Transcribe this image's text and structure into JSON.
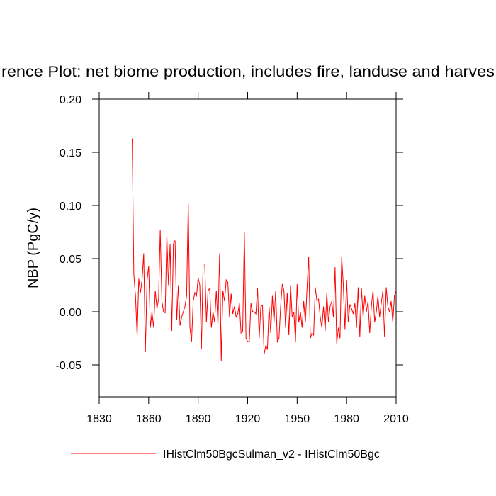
{
  "chart_data": {
    "type": "line",
    "title": "rence Plot: net biome production, includes fire, landuse and harves",
    "y_label": "NBP  (PgC/y)",
    "x": [
      1850,
      1851,
      1852,
      1853,
      1854,
      1855,
      1856,
      1857,
      1858,
      1859,
      1860,
      1861,
      1862,
      1863,
      1864,
      1865,
      1866,
      1867,
      1868,
      1869,
      1870,
      1871,
      1872,
      1873,
      1874,
      1875,
      1876,
      1877,
      1878,
      1879,
      1880,
      1881,
      1882,
      1883,
      1884,
      1885,
      1886,
      1887,
      1888,
      1889,
      1890,
      1891,
      1892,
      1893,
      1894,
      1895,
      1896,
      1897,
      1898,
      1899,
      1900,
      1901,
      1902,
      1903,
      1904,
      1905,
      1906,
      1907,
      1908,
      1909,
      1910,
      1911,
      1912,
      1913,
      1914,
      1915,
      1916,
      1917,
      1918,
      1919,
      1920,
      1921,
      1922,
      1923,
      1924,
      1925,
      1926,
      1927,
      1928,
      1929,
      1930,
      1931,
      1932,
      1933,
      1934,
      1935,
      1936,
      1937,
      1938,
      1939,
      1940,
      1941,
      1942,
      1943,
      1944,
      1945,
      1946,
      1947,
      1948,
      1949,
      1950,
      1951,
      1952,
      1953,
      1954,
      1955,
      1956,
      1957,
      1958,
      1959,
      1960,
      1961,
      1962,
      1963,
      1964,
      1965,
      1966,
      1967,
      1968,
      1969,
      1970,
      1971,
      1972,
      1973,
      1974,
      1975,
      1976,
      1977,
      1978,
      1979,
      1980,
      1981,
      1982,
      1983,
      1984,
      1985,
      1986,
      1987,
      1988,
      1989,
      1990,
      1991,
      1992,
      1993,
      1994,
      1995,
      1996,
      1997,
      1998,
      1999,
      2000,
      2001,
      2002,
      2003,
      2004,
      2005,
      2006,
      2007,
      2008,
      2009,
      2010
    ],
    "series": [
      {
        "name": "IHistClm50BgcSulman_v2 - IHistClm50Bgc",
        "color": "#ff0000",
        "values": [
          0.163,
          0.035,
          0.015,
          -0.023,
          0.031,
          0.018,
          0.03,
          0.055,
          -0.038,
          0.03,
          0.043,
          -0.015,
          0.0,
          -0.015,
          0.02,
          0.003,
          0.012,
          0.077,
          0.01,
          0.0,
          -0.001,
          0.072,
          0.025,
          0.064,
          -0.018,
          0.064,
          0.067,
          -0.008,
          0.025,
          -0.013,
          -0.005,
          0.0,
          0.005,
          0.015,
          0.102,
          -0.015,
          -0.028,
          0.01,
          0.018,
          0.015,
          0.032,
          0.025,
          -0.035,
          0.045,
          0.045,
          -0.01,
          0.02,
          0.022,
          -0.015,
          0.0,
          -0.01,
          0.02,
          -0.012,
          0.055,
          -0.046,
          0.02,
          0.01,
          0.03,
          0.028,
          -0.005,
          0.017,
          -0.002,
          0.005,
          -0.005,
          -0.002,
          0.008,
          -0.02,
          -0.018,
          0.075,
          -0.025,
          -0.028,
          -0.028,
          0.008,
          0.0,
          0.0,
          -0.002,
          0.022,
          -0.025,
          0.005,
          0.006,
          -0.04,
          -0.032,
          -0.035,
          0.005,
          -0.02,
          0.015,
          -0.01,
          0.02,
          -0.028,
          -0.025,
          0.005,
          0.026,
          0.02,
          -0.015,
          0.018,
          -0.022,
          0.025,
          -0.005,
          0.0,
          -0.028,
          0.026,
          -0.01,
          0.0,
          -0.015,
          0.01,
          -0.01,
          0.022,
          0.052,
          -0.025,
          -0.02,
          -0.022,
          0.023,
          0.01,
          0.012,
          -0.005,
          -0.015,
          0.005,
          -0.018,
          0.018,
          -0.01,
          0.005,
          0.01,
          -0.005,
          0.042,
          -0.03,
          -0.015,
          -0.025,
          0.052,
          0.025,
          -0.017,
          0.03,
          -0.01,
          0.007,
          0.003,
          -0.002,
          0.008,
          -0.015,
          0.023,
          -0.024,
          0.022,
          -0.005,
          0.015,
          0.0,
          0.01,
          -0.02,
          0.005,
          0.02,
          -0.01,
          0.0,
          0.015,
          -0.005,
          0.008,
          0.02,
          -0.024,
          0.023,
          0.005,
          0.0,
          0.01,
          -0.01,
          0.015,
          0.02
        ]
      }
    ],
    "xlim": [
      1830,
      2010
    ],
    "xticks": [
      1830,
      1860,
      1890,
      1920,
      1950,
      1980,
      2010
    ],
    "ylim": [
      -0.08,
      0.2
    ],
    "yticks": [
      {
        "value": 0.2,
        "label": "0.20"
      },
      0.15,
      {
        "value": 0.1,
        "label": "0.10"
      },
      0.05,
      {
        "value": 0,
        "label": "0.00"
      },
      -0.05
    ]
  }
}
